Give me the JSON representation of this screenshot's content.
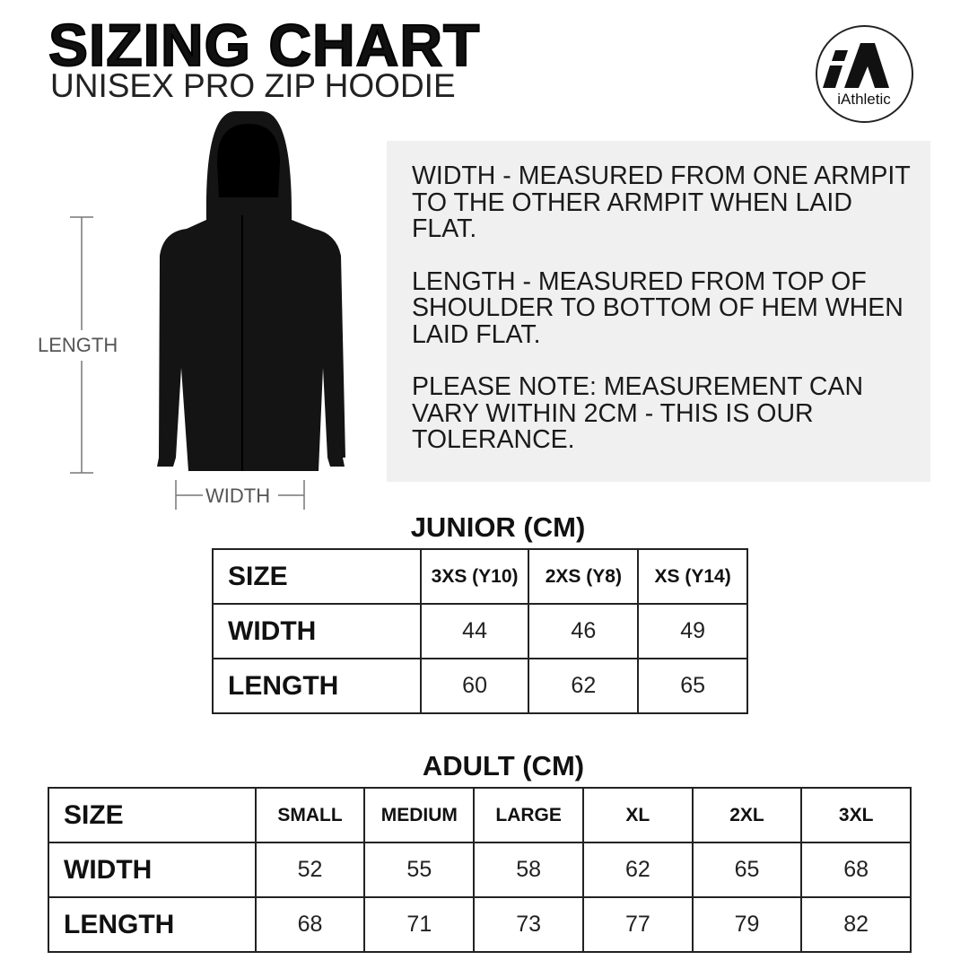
{
  "header": {
    "title": "SIZING CHART",
    "subtitle": "UNISEX PRO ZIP HOODIE"
  },
  "logo": {
    "text": "iAthletic",
    "mark": "iA"
  },
  "diagram": {
    "length_label": "LENGTH",
    "width_label": "WIDTH"
  },
  "info": {
    "width_note": "WIDTH - MEASURED FROM ONE ARMPIT TO THE OTHER ARMPIT WHEN LAID FLAT.",
    "length_note": "LENGTH - MEASURED FROM TOP OF SHOULDER TO BOTTOM OF HEM WHEN LAID FLAT.",
    "tolerance_note": "PLEASE NOTE: MEASUREMENT CAN VARY WITHIN 2CM - THIS IS OUR TOLERANCE."
  },
  "junior": {
    "title": "JUNIOR (CM)",
    "row_labels": [
      "SIZE",
      "WIDTH",
      "LENGTH"
    ],
    "sizes": [
      "3XS (Y10)",
      "2XS (Y8)",
      "XS (Y14)"
    ],
    "width": [
      "44",
      "46",
      "49"
    ],
    "length": [
      "60",
      "62",
      "65"
    ]
  },
  "adult": {
    "title": "ADULT (CM)",
    "row_labels": [
      "SIZE",
      "WIDTH",
      "LENGTH"
    ],
    "sizes": [
      "SMALL",
      "MEDIUM",
      "LARGE",
      "XL",
      "2XL",
      "3XL"
    ],
    "width": [
      "52",
      "55",
      "58",
      "62",
      "65",
      "68"
    ],
    "length": [
      "68",
      "71",
      "73",
      "77",
      "79",
      "82"
    ]
  }
}
